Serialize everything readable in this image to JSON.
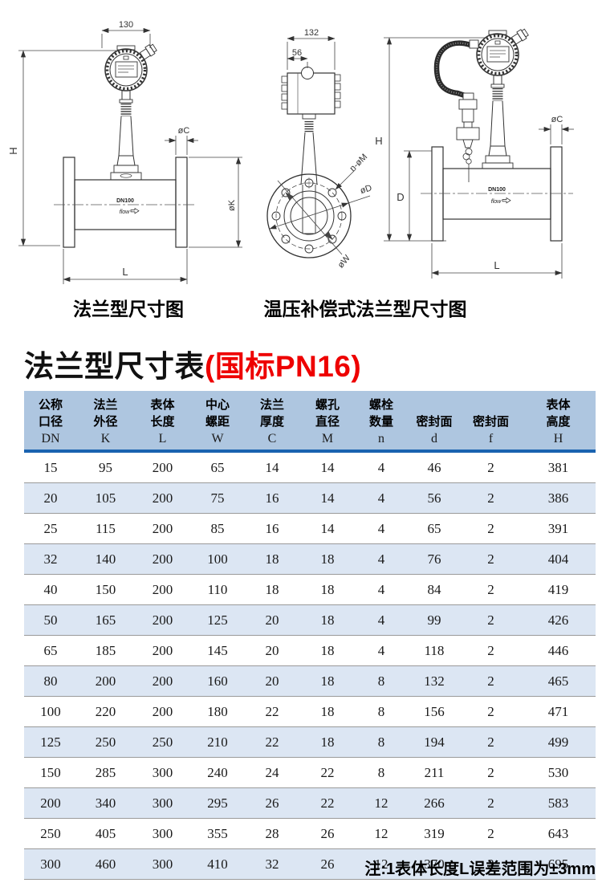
{
  "drawings": {
    "left": {
      "caption": "法兰型尺寸图",
      "dim_width": "130",
      "dim_height": "H",
      "dim_flange_thickness": "øC",
      "dim_flange_od": "øK",
      "dim_length": "L",
      "pipe_label": "DN100",
      "flow_label": "flow"
    },
    "front": {
      "dim_width": "132",
      "dim_offset": "56",
      "dim_bolt_holes": "n-øM",
      "dim_outer_dia": "øD",
      "dim_bolt_circle": "øW"
    },
    "right": {
      "caption": "温压补偿式法兰型尺寸图",
      "dim_height": "H",
      "dim_flange_dia": "D",
      "dim_flange_thickness": "øC",
      "dim_length": "L",
      "pipe_label": "DN100",
      "flow_label": "flow"
    }
  },
  "title": {
    "main": "法兰型尺寸表",
    "highlight": "(国标PN16)"
  },
  "table": {
    "headers": [
      {
        "line1": "公称",
        "line2": "口径",
        "code": "DN"
      },
      {
        "line1": "法兰",
        "line2": "外径",
        "code": "K"
      },
      {
        "line1": "表体",
        "line2": "长度",
        "code": "L"
      },
      {
        "line1": "中心",
        "line2": "螺距",
        "code": "W"
      },
      {
        "line1": "法兰",
        "line2": "厚度",
        "code": "C"
      },
      {
        "line1": "螺孔",
        "line2": "直径",
        "code": "M"
      },
      {
        "line1": "螺栓",
        "line2": "数量",
        "code": "n"
      },
      {
        "line1": "",
        "line2": "密封面",
        "code": "d"
      },
      {
        "line1": "",
        "line2": "密封面",
        "code": "f"
      },
      {
        "line1": "表体",
        "line2": "高度",
        "code": "H"
      }
    ],
    "rows": [
      [
        15,
        95,
        200,
        65,
        14,
        14,
        4,
        46,
        2,
        381
      ],
      [
        20,
        105,
        200,
        75,
        16,
        14,
        4,
        56,
        2,
        386
      ],
      [
        25,
        115,
        200,
        85,
        16,
        14,
        4,
        65,
        2,
        391
      ],
      [
        32,
        140,
        200,
        100,
        18,
        18,
        4,
        76,
        2,
        404
      ],
      [
        40,
        150,
        200,
        110,
        18,
        18,
        4,
        84,
        2,
        419
      ],
      [
        50,
        165,
        200,
        125,
        20,
        18,
        4,
        99,
        2,
        426
      ],
      [
        65,
        185,
        200,
        145,
        20,
        18,
        4,
        118,
        2,
        446
      ],
      [
        80,
        200,
        200,
        160,
        20,
        18,
        8,
        132,
        2,
        465
      ],
      [
        100,
        220,
        200,
        180,
        22,
        18,
        8,
        156,
        2,
        471
      ],
      [
        125,
        250,
        250,
        210,
        22,
        18,
        8,
        194,
        2,
        499
      ],
      [
        150,
        285,
        300,
        240,
        24,
        22,
        8,
        211,
        2,
        530
      ],
      [
        200,
        340,
        300,
        295,
        26,
        22,
        12,
        266,
        2,
        583
      ],
      [
        250,
        405,
        300,
        355,
        28,
        26,
        12,
        319,
        2,
        643
      ],
      [
        300,
        460,
        300,
        410,
        32,
        26,
        12,
        370,
        2,
        695
      ]
    ],
    "colors": {
      "header_bg": "#aec6e0",
      "header_divider": "#1a63b0",
      "row_alt": "#dce6f3",
      "row_border": "#9a9a9a",
      "title_highlight": "#ee0000"
    }
  },
  "note": "注:1表体长度L误差范围为±3mm"
}
